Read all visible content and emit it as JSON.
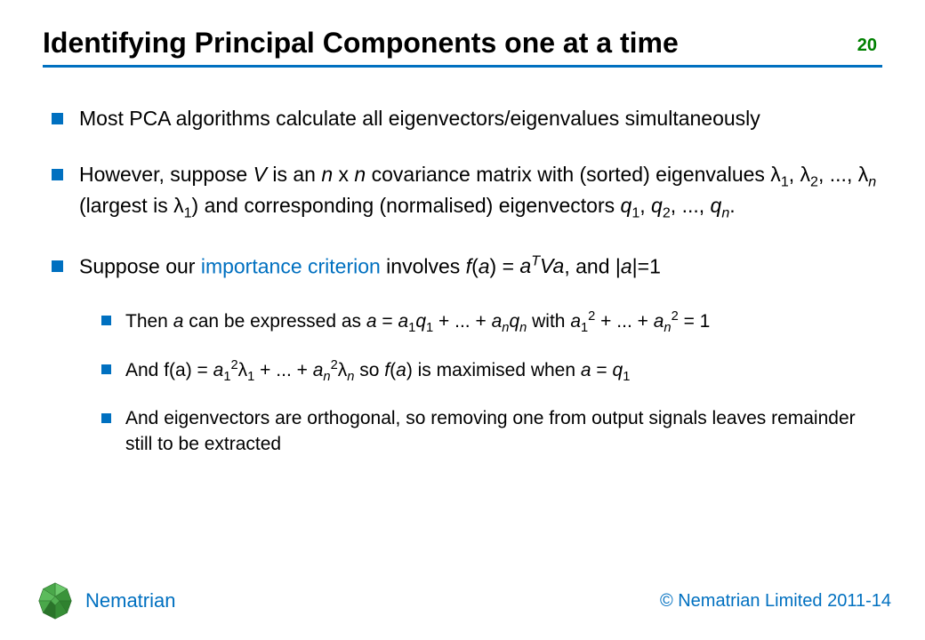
{
  "colors": {
    "accent": "#0070c0",
    "pagenum": "#008000",
    "text": "#000000",
    "background": "#ffffff"
  },
  "typography": {
    "title_fontsize": 32,
    "body_fontsize": 23,
    "sub_fontsize": 21,
    "footer_fontsize": 22,
    "font_family": "Arial"
  },
  "header": {
    "title": "Identifying Principal Components one at a time",
    "page_number": "20"
  },
  "bullets": [
    {
      "level": 1,
      "html": "Most PCA algorithms calculate all eigenvectors/eigenvalues simultaneously"
    },
    {
      "level": 1,
      "html": "However, suppose <span class='it'>V</span> is an <span class='it'>n</span> x <span class='it'>n</span> covariance matrix with (sorted) eigenvalues &lambda;<sub>1</sub>, &lambda;<sub>2</sub>, ..., &lambda;<sub><span class='it'>n</span></sub> (largest is &lambda;<sub>1</sub>) and corresponding (normalised) eigenvectors <span class='it'>q</span><sub>1</sub>, <span class='it'>q</span><sub>2</sub>, ..., <span class='it'>q</span><sub><span class='it'>n</span></sub>."
    },
    {
      "level": 1,
      "html": "Suppose our <span class='hl'>importance criterion</span> involves <span class='it'>f</span>(<span class='it'>a</span>) = <span class='it'>a<sup>T</sup>Va</span>, and |<span class='it'>a</span>|=1"
    },
    {
      "level": 2,
      "html": "Then <span class='it'>a</span> can be expressed as <span class='it'>a</span> = <span class='it'>a</span><sub>1</sub><span class='it'>q</span><sub>1</sub> + ... + <span class='it'>a</span><sub><span class='it'>n</span></sub><span class='it'>q</span><sub><span class='it'>n</span></sub> with <span class='it'>a</span><sub>1</sub><sup>2</sup> + ... + <span class='it'>a</span><sub><span class='it'>n</span></sub><sup>2</sup> = 1"
    },
    {
      "level": 2,
      "html": "And f(a) = <span class='it'>a</span><sub>1</sub><sup>2</sup>&lambda;<sub>1</sub> + ... + <span class='it'>a</span><sub><span class='it'>n</span></sub><sup>2</sup>&lambda;<sub><span class='it'>n</span></sub> so <span class='it'>f</span>(<span class='it'>a</span>) is maximised when <span class='it'>a</span> = <span class='it'>q</span><sub>1</sub>"
    },
    {
      "level": 2,
      "html": "And eigenvectors are orthogonal, so removing one from output signals leaves remainder still to be extracted"
    }
  ],
  "footer": {
    "brand_name": "Nematrian",
    "copyright": "© Nematrian Limited 2011-14",
    "logo": {
      "type": "polyhedron-icon",
      "fill": "#3a9a3a",
      "stroke": "#2d6e2d"
    }
  }
}
